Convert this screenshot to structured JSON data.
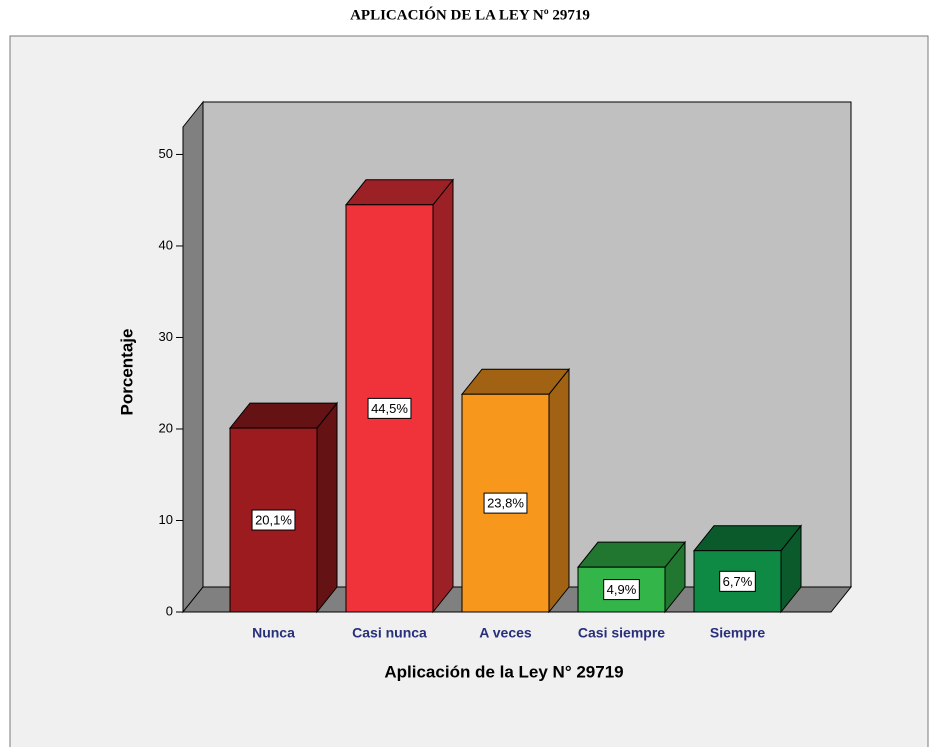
{
  "chart_data": {
    "type": "bar3d",
    "title": "APLICACIÓN DE LA LEY Nº 29719",
    "xlabel": "Aplicación de la Ley N° 29719",
    "ylabel": "Porcentaje",
    "categories": [
      "Nunca",
      "Casi nunca",
      "A veces",
      "Casi siempre",
      "Siempre"
    ],
    "values": [
      20.1,
      44.5,
      23.8,
      4.9,
      6.7
    ],
    "value_labels": [
      "20,1%",
      "44,5%",
      "23,8%",
      "4,9%",
      "6,7%"
    ],
    "colors": [
      "#9b1b1f",
      "#f0333b",
      "#f7981d",
      "#33b54a",
      "#0f8a44"
    ],
    "ylim": [
      0,
      53
    ],
    "yticks": [
      0,
      10,
      20,
      30,
      40,
      50
    ]
  }
}
